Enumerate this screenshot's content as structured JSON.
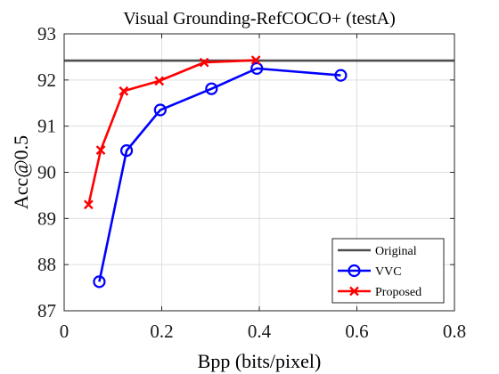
{
  "chart_data": {
    "type": "line",
    "title": "Visual Grounding-RefCOCO+ (testA)",
    "xlabel": "Bpp (bits/pixel)",
    "ylabel": "Acc@0.5",
    "xlim": [
      0,
      0.8
    ],
    "ylim": [
      87,
      93
    ],
    "xticks": [
      0,
      0.2,
      0.4,
      0.6,
      0.8
    ],
    "xtick_labels": [
      "0",
      "0.2",
      "0.4",
      "0.6",
      "0.8"
    ],
    "yticks": [
      87,
      88,
      89,
      90,
      91,
      92,
      93
    ],
    "ytick_labels": [
      "87",
      "88",
      "89",
      "90",
      "91",
      "92",
      "93"
    ],
    "grid": true,
    "legend_position": "bottom-right",
    "series": [
      {
        "name": "Original",
        "kind": "hline",
        "color": "#4d4d4d",
        "y": 92.42
      },
      {
        "name": "VVC",
        "marker": "circle",
        "color": "#0000ff",
        "x": [
          0.072,
          0.128,
          0.197,
          0.302,
          0.395,
          0.567
        ],
        "y": [
          87.63,
          90.47,
          91.35,
          91.81,
          92.25,
          92.1
        ]
      },
      {
        "name": "Proposed",
        "marker": "x",
        "color": "#ff0000",
        "x": [
          0.05,
          0.075,
          0.122,
          0.195,
          0.287,
          0.393
        ],
        "y": [
          89.3,
          90.48,
          91.76,
          91.98,
          92.38,
          92.43
        ]
      }
    ]
  }
}
